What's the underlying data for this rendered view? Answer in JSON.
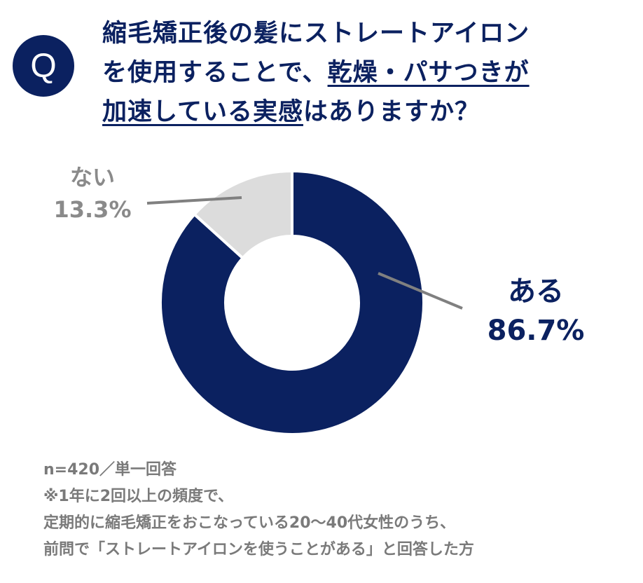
{
  "badge": "Q",
  "question": {
    "line1": "縮毛矯正後の髪にストレートアイロン",
    "line2_plain": "を使用することで、",
    "line2_underlined": "乾燥・パサつきが",
    "line3_underlined": "加速している実感",
    "line3_plain": "はありますか？"
  },
  "colors": {
    "aru": "#0b2160",
    "nai": "#dcdcdc",
    "leader": "#808080"
  },
  "chart_data": {
    "type": "pie",
    "style": "donut",
    "slices": [
      {
        "label": "ある",
        "value": 86.7,
        "display": "86.7%",
        "color": "#0b2160"
      },
      {
        "label": "ない",
        "value": 13.3,
        "display": "13.3%",
        "color": "#dcdcdc"
      }
    ]
  },
  "notes": {
    "n": "n=420／単一回答",
    "line1": "※1年に2回以上の頻度で、",
    "line2": "定期的に縮毛矯正をおこなっている20〜40代女性のうち、",
    "line3": "前問で「ストレートアイロンを使うことがある」と回答した方"
  }
}
